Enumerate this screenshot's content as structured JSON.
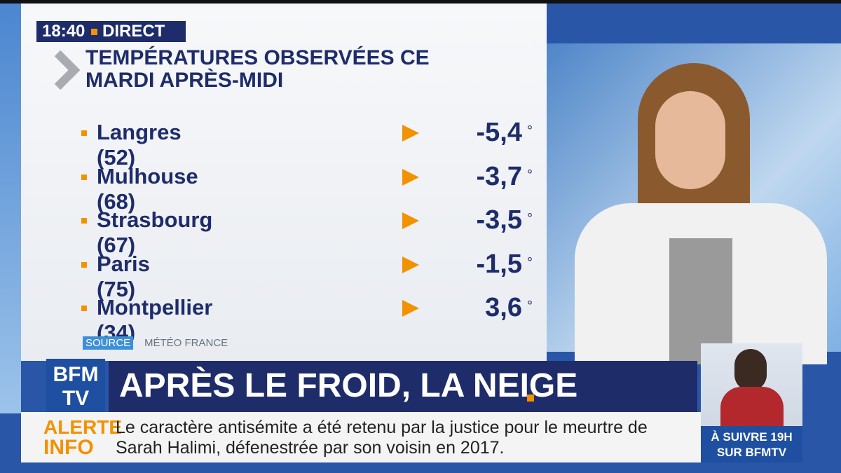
{
  "clock": {
    "time": "18:40",
    "status": "DIRECT"
  },
  "panel": {
    "title_lines": [
      "TEMPÉRATURES OBSERVÉES CE",
      "MARDI APRÈS-MIDI"
    ],
    "rows": [
      {
        "city": "Langres (52)",
        "temperature": "-5,4",
        "unit": "°"
      },
      {
        "city": "Mulhouse (68)",
        "temperature": "-3,7",
        "unit": "°"
      },
      {
        "city": "Strasbourg (67)",
        "temperature": "-3,5",
        "unit": "°"
      },
      {
        "city": "Paris (75)",
        "temperature": "-1,5",
        "unit": "°"
      },
      {
        "city": "Montpellier (34)",
        "temperature": "3,6",
        "unit": "°"
      }
    ],
    "source_label": "SOURCE",
    "source": "MÉTÉO FRANCE"
  },
  "logo": {
    "top": "BFM",
    "bottom": "TV"
  },
  "headline": "APRÈS LE FROID, LA NEIGE",
  "ticker": {
    "label_top": "ALERTE",
    "label_bottom": "INFO",
    "lines": [
      "Le caractère antisémite a été retenu par la justice pour le meurtre de",
      "Sarah Halimi, défenestrée par son voisin en 2017."
    ]
  },
  "next": {
    "line1": "À SUIVRE 19H",
    "line2": "SUR BFMTV"
  }
}
